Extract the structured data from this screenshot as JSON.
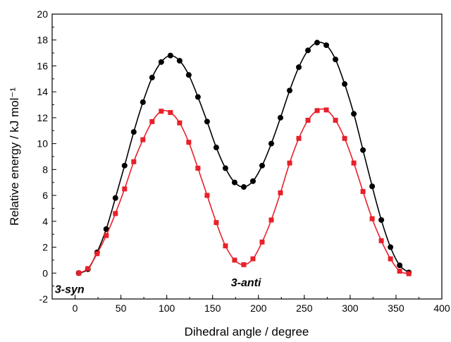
{
  "chart_data": {
    "type": "line",
    "x": [
      4,
      14,
      24,
      34,
      44,
      54,
      64,
      74,
      84,
      94,
      104,
      114,
      124,
      134,
      144,
      154,
      164,
      174,
      184,
      194,
      204,
      214,
      224,
      234,
      244,
      254,
      264,
      274,
      284,
      294,
      304,
      314,
      324,
      334,
      344,
      354,
      364
    ],
    "series": [
      {
        "color": "#000000",
        "marker": "circle",
        "values": [
          0,
          0.3,
          1.6,
          3.4,
          5.8,
          8.3,
          10.9,
          13.2,
          15.1,
          16.3,
          16.8,
          16.4,
          15.3,
          13.6,
          11.7,
          9.7,
          8.1,
          7.0,
          6.65,
          7.1,
          8.3,
          10.0,
          12.0,
          14.1,
          15.9,
          17.2,
          17.8,
          17.6,
          16.5,
          14.6,
          12.3,
          9.5,
          6.7,
          4.1,
          2.0,
          0.6,
          0.05
        ]
      },
      {
        "color": "#e8202a",
        "marker": "square",
        "values": [
          0,
          0.35,
          1.5,
          2.9,
          4.6,
          6.5,
          8.6,
          10.3,
          11.7,
          12.5,
          12.4,
          11.6,
          10.1,
          8.1,
          6.0,
          3.9,
          2.1,
          1.0,
          0.65,
          1.1,
          2.4,
          4.1,
          6.2,
          8.5,
          10.4,
          11.8,
          12.55,
          12.6,
          11.8,
          10.4,
          8.5,
          6.3,
          4.2,
          2.5,
          1.1,
          0.15,
          -0.05
        ]
      }
    ],
    "xlabel": "Dihedral angle / degree",
    "ylabel": "Relative energy / kJ mol⁻¹",
    "xlim": [
      -25,
      400
    ],
    "xticks": [
      0,
      50,
      100,
      150,
      200,
      250,
      300,
      350,
      400
    ],
    "ylim": [
      -2,
      20
    ],
    "yticks": [
      -2,
      0,
      2,
      4,
      6,
      8,
      10,
      12,
      14,
      16,
      18,
      20
    ],
    "annotations": [
      {
        "text": "3-syn",
        "x": -22,
        "y": -1.2
      },
      {
        "text": "3-anti",
        "x": 170,
        "y": -0.7
      }
    ]
  }
}
